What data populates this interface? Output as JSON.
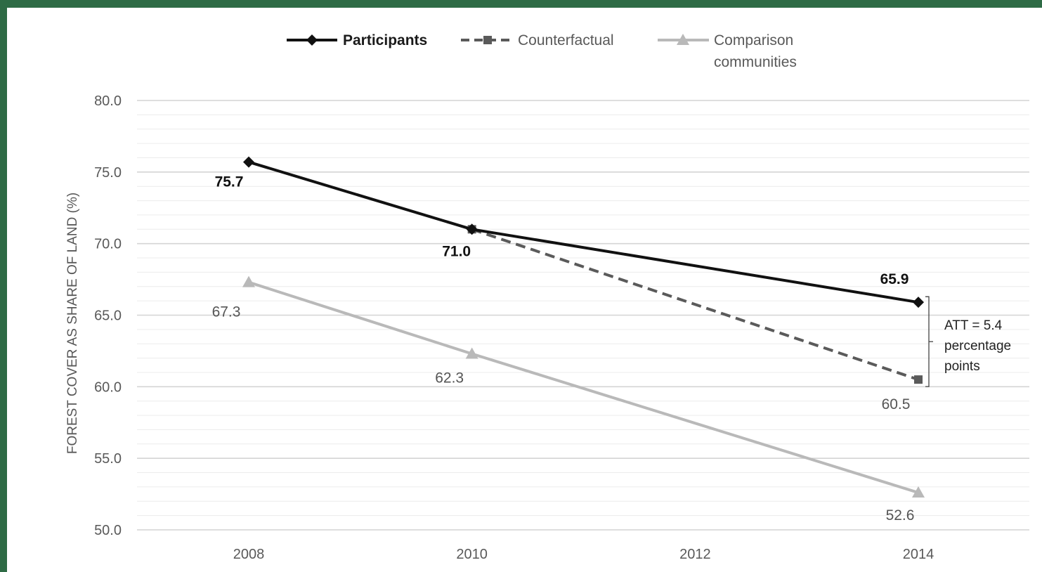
{
  "chart_data": {
    "type": "line",
    "ylabel": "FOREST COVER AS SHARE OF LAND (%)",
    "xlabel": "",
    "x": [
      "2008",
      "2010",
      "2012",
      "2014"
    ],
    "ylim": [
      50,
      80
    ],
    "yticks": [
      "50.0",
      "55.0",
      "60.0",
      "65.0",
      "70.0",
      "75.0",
      "80.0"
    ],
    "grid": true,
    "legend_position": "top",
    "series": [
      {
        "name": "Participants",
        "color": "#111111",
        "style": "solid",
        "marker": "diamond",
        "bold": true,
        "points": [
          [
            2008,
            75.7
          ],
          [
            2010,
            71.0
          ],
          [
            2014,
            65.9
          ]
        ],
        "labels": [
          "75.7",
          "71.0",
          "65.9"
        ]
      },
      {
        "name": "Counterfactual",
        "color": "#5a5a5a",
        "style": "dashed",
        "marker": "square",
        "bold": false,
        "points": [
          [
            2010,
            71.0
          ],
          [
            2014,
            60.5
          ]
        ],
        "labels": [
          "",
          "60.5"
        ]
      },
      {
        "name": "Comparison communities",
        "name_lines": [
          "Comparison",
          "communities"
        ],
        "color": "#b9b9b9",
        "style": "solid",
        "marker": "triangle",
        "bold": false,
        "points": [
          [
            2008,
            67.3
          ],
          [
            2010,
            62.3
          ],
          [
            2014,
            52.6
          ]
        ],
        "labels": [
          "67.3",
          "62.3",
          "52.6"
        ]
      }
    ],
    "annotation": {
      "lines": [
        "ATT = 5.4",
        "percentage",
        "points"
      ],
      "from": 65.9,
      "to": 60.5
    }
  }
}
